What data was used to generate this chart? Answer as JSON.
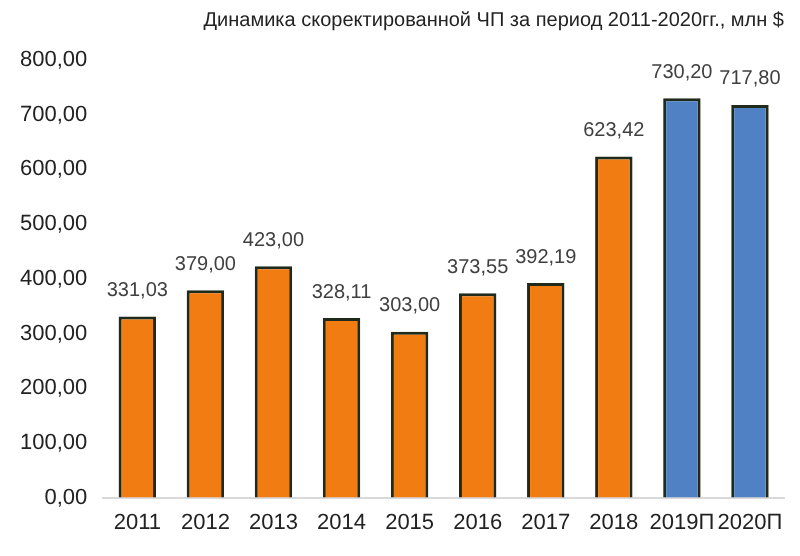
{
  "chart_data": {
    "type": "bar",
    "title": "Динамика скоректированной ЧП за период 2011-2020гг., млн $",
    "categories": [
      "2011",
      "2012",
      "2013",
      "2014",
      "2015",
      "2016",
      "2017",
      "2018",
      "2019П",
      "2020П"
    ],
    "values": [
      331.03,
      379,
      423,
      328.11,
      303,
      373.55,
      392.19,
      623.42,
      730.2,
      717.8
    ],
    "colors": [
      "#f07c12",
      "#f07c12",
      "#f07c12",
      "#f07c12",
      "#f07c12",
      "#f07c12",
      "#f07c12",
      "#f07c12",
      "#4f81c4",
      "#4f81c4"
    ],
    "value_labels": [
      "331,03",
      "379,00",
      "423,00",
      "328,11",
      "303,00",
      "373,55",
      "392,19",
      "623,42",
      "730,20",
      "717,80"
    ],
    "ylim": [
      0,
      800
    ],
    "yticks": [
      {
        "value": 0,
        "label": "0,00"
      },
      {
        "value": 100,
        "label": "100,00"
      },
      {
        "value": 200,
        "label": "200,00"
      },
      {
        "value": 300,
        "label": "300,00"
      },
      {
        "value": 400,
        "label": "400,00"
      },
      {
        "value": 500,
        "label": "500,00"
      },
      {
        "value": 600,
        "label": "600,00"
      },
      {
        "value": 700,
        "label": "700,00"
      },
      {
        "value": 800,
        "label": "800,00"
      }
    ],
    "grid": false,
    "legend": false
  }
}
